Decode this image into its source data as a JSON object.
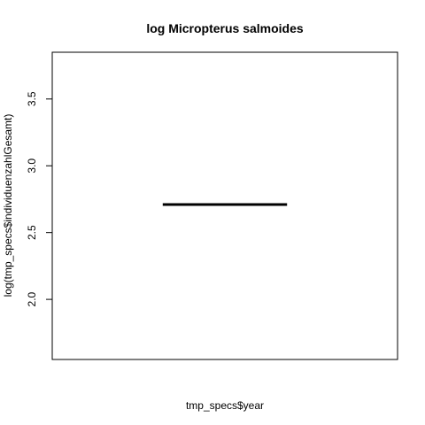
{
  "chart_data": {
    "type": "line",
    "title": "log Micropterus salmoides",
    "xlabel": "tmp_specs$year",
    "ylabel": "log(tmp_specs$individuenzahlGesamt)",
    "ylim": [
      1.55,
      3.85
    ],
    "yticks": [
      2.0,
      2.5,
      3.0,
      3.5
    ],
    "ytick_labels": [
      "2.0",
      "2.5",
      "3.0",
      "3.5"
    ],
    "xlim": [
      0,
      1
    ],
    "series": [
      {
        "x": [
          0.32,
          0.68
        ],
        "values": [
          2.71,
          2.71
        ]
      }
    ],
    "grid": false,
    "show_x_ticks": false
  }
}
